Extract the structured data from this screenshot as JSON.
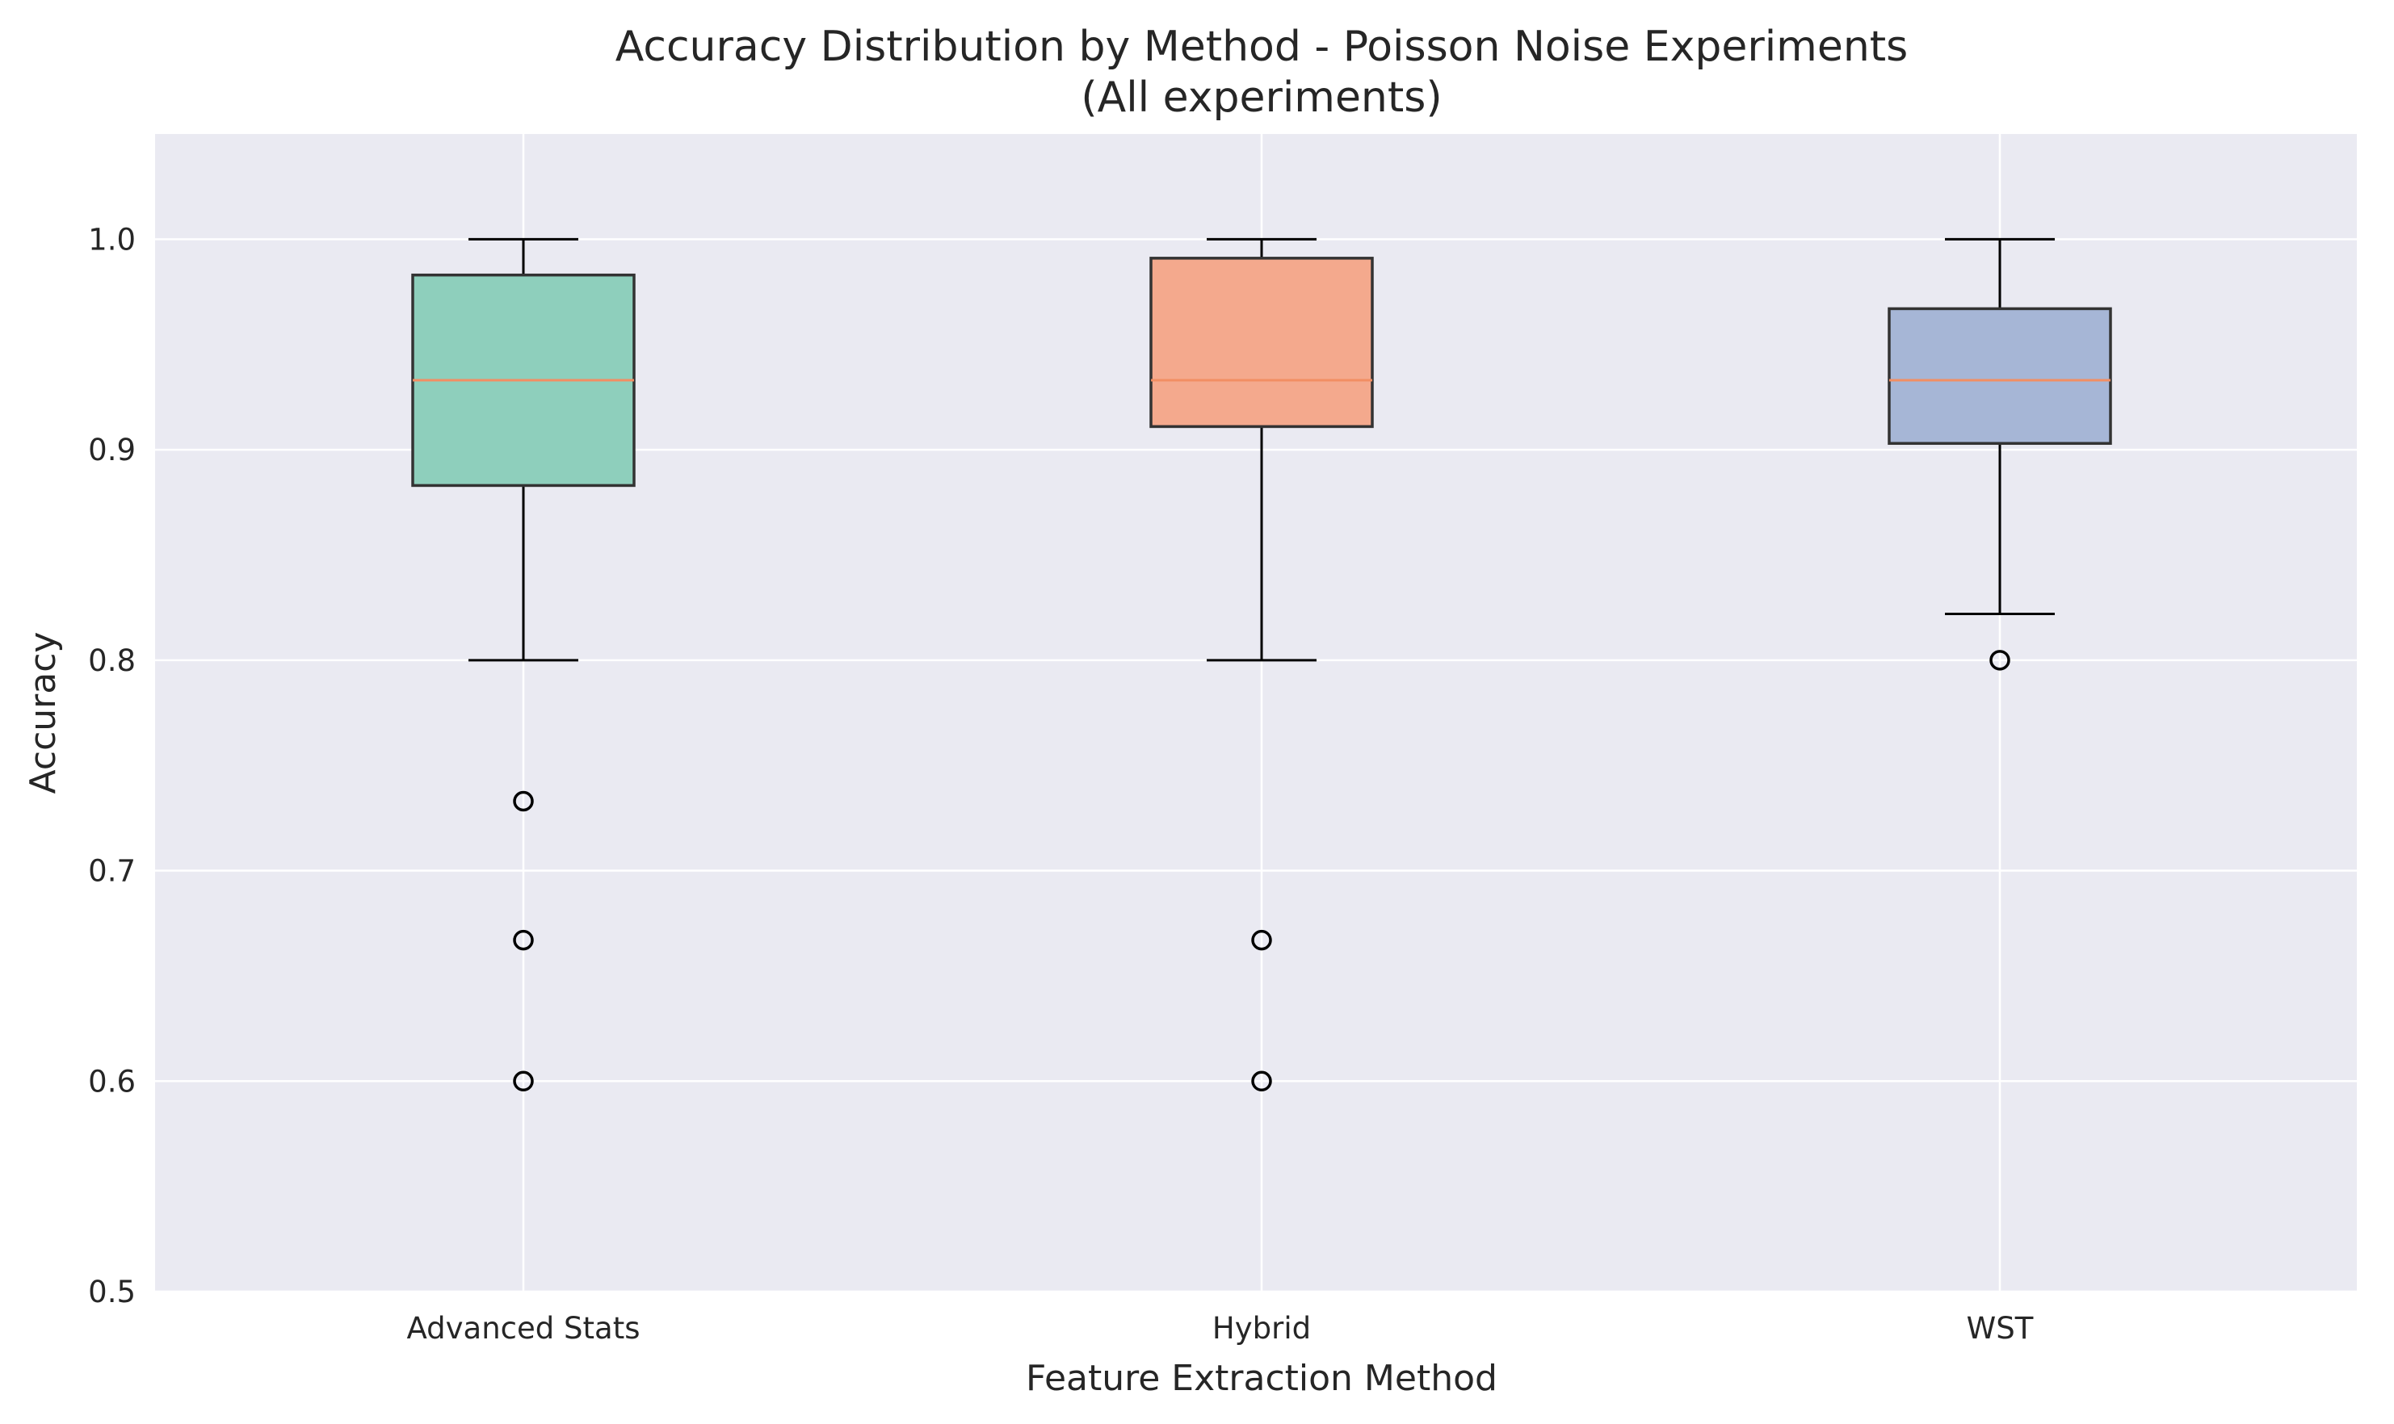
{
  "chart_data": {
    "type": "box",
    "title": "Accuracy Distribution by Method - Poisson Noise Experiments",
    "subtitle": "(All experiments)",
    "xlabel": "Feature Extraction Method",
    "ylabel": "Accuracy",
    "ylim": [
      0.5,
      1.05
    ],
    "yticks": [
      "0.5",
      "0.6",
      "0.7",
      "0.8",
      "0.9",
      "1.0"
    ],
    "grid": true,
    "categories": [
      "Advanced Stats",
      "Hybrid",
      "WST"
    ],
    "boxes": [
      {
        "category": "Advanced Stats",
        "whisker_low": 0.8,
        "q1": 0.883,
        "median": 0.933,
        "q3": 0.983,
        "whisker_high": 1.0,
        "outliers": [
          0.733,
          0.667,
          0.6
        ],
        "color": "#8ecfbc"
      },
      {
        "category": "Hybrid",
        "whisker_low": 0.8,
        "q1": 0.911,
        "median": 0.933,
        "q3": 0.991,
        "whisker_high": 1.0,
        "outliers": [
          0.667,
          0.6
        ],
        "color": "#f4a98d"
      },
      {
        "category": "WST",
        "whisker_low": 0.822,
        "q1": 0.903,
        "median": 0.933,
        "q3": 0.967,
        "whisker_high": 1.0,
        "outliers": [
          0.8
        ],
        "color": "#a6b6d6"
      }
    ],
    "median_color": "#f28e63",
    "plot_background": "#eaeaf2"
  }
}
